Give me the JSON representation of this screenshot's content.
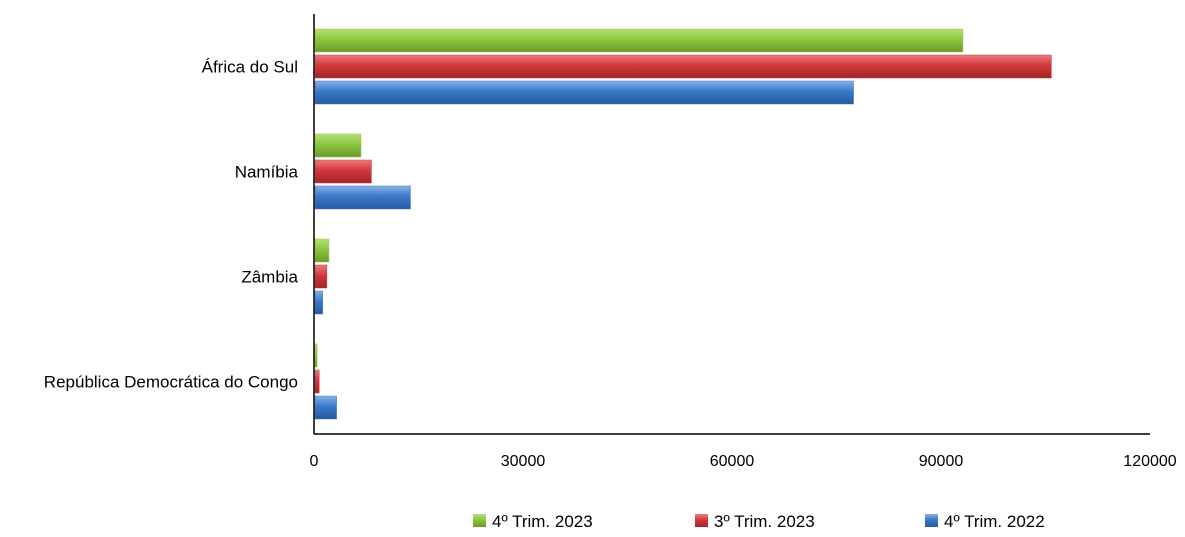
{
  "chart_data": {
    "type": "bar",
    "orientation": "horizontal",
    "categories": [
      "África do Sul",
      "Namíbia",
      "Zâmbia",
      "República Democrática do Congo"
    ],
    "series": [
      {
        "name": "4º Trim. 2023",
        "color": "#8dc63f",
        "values": [
          93000,
          6600,
          2000,
          300
        ]
      },
      {
        "name": "3º Trim. 2023",
        "color": "#d2373c",
        "values": [
          105700,
          8100,
          1700,
          600
        ]
      },
      {
        "name": "4º Trim. 2022",
        "color": "#3b78c8",
        "values": [
          77300,
          13700,
          1100,
          3100
        ]
      }
    ],
    "xlim": [
      0,
      120000
    ],
    "xticks": [
      "0",
      "30000",
      "60000",
      "90000",
      "120000"
    ],
    "grid": false,
    "legend_position": "bottom"
  }
}
